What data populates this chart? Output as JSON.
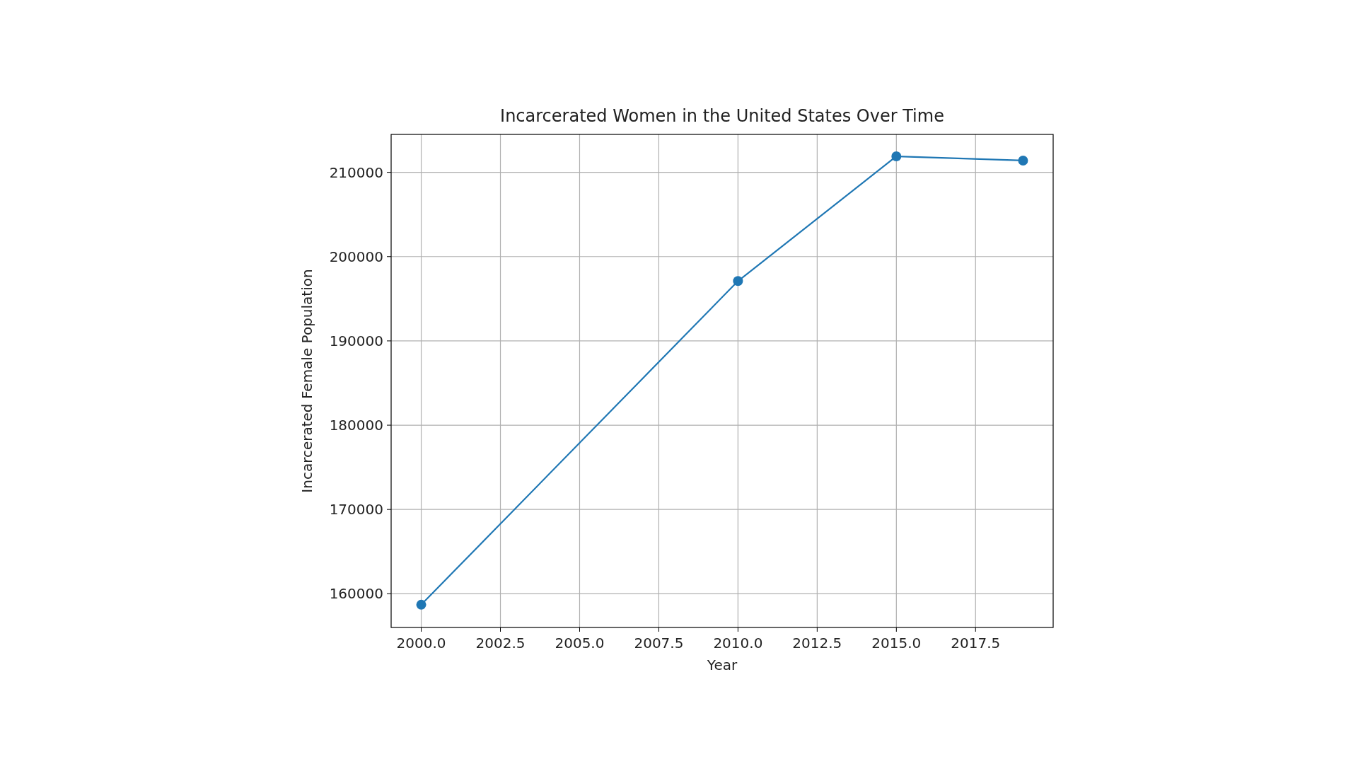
{
  "chart_data": {
    "type": "line",
    "title": "Incarcerated Women in the United States Over Time",
    "xlabel": "Year",
    "ylabel": "Incarcerated Female Population",
    "x": [
      2000,
      2010,
      2015,
      2019
    ],
    "series": [
      {
        "color": "#1f77b4",
        "values": [
          158700,
          197100,
          211900,
          211400
        ]
      }
    ],
    "xlim": [
      1999.05,
      2019.95
    ],
    "xticks": [
      {
        "value": 2000,
        "label": "2000.0"
      },
      {
        "value": 2002.5,
        "label": "2002.5"
      },
      {
        "value": 2005,
        "label": "2005.0"
      },
      {
        "value": 2007.5,
        "label": "2007.5"
      },
      {
        "value": 2010,
        "label": "2010.0"
      },
      {
        "value": 2012.5,
        "label": "2012.5"
      },
      {
        "value": 2015,
        "label": "2015.0"
      },
      {
        "value": 2017.5,
        "label": "2017.5"
      }
    ],
    "ylim": [
      156000,
      214500
    ],
    "yticks": [
      160000,
      170000,
      180000,
      190000,
      200000,
      210000
    ],
    "grid": true,
    "marker": "circle",
    "line_style": "solid"
  }
}
